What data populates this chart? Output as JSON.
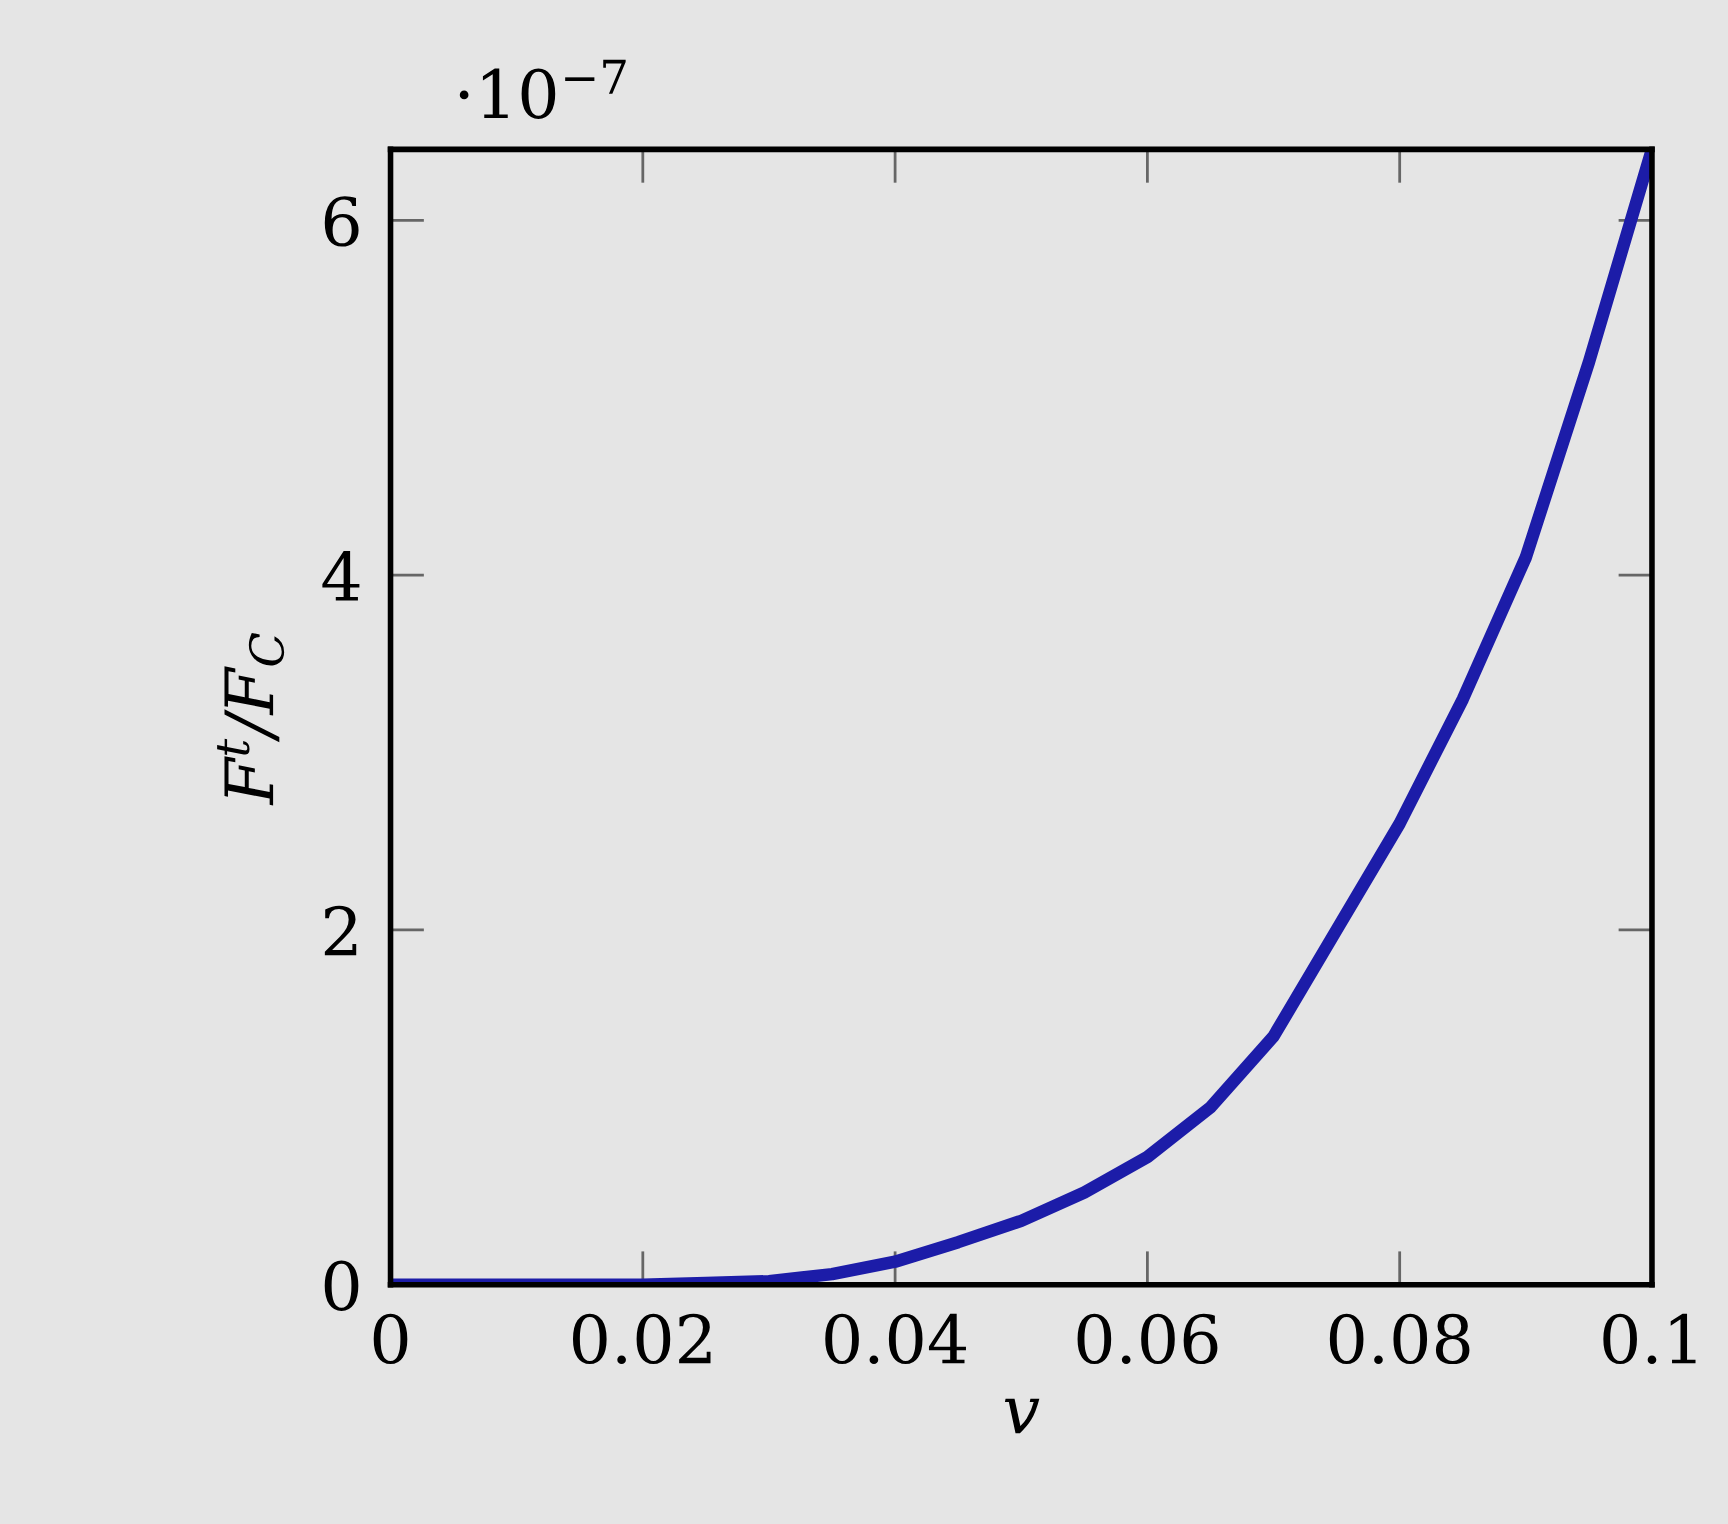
{
  "chart_data": {
    "type": "line",
    "xlabel": "v",
    "ylabel": "F$^{t}$/F$_{C}$",
    "annotations": [
      "·10$^{−7}$"
    ],
    "x": [
      0,
      0.01,
      0.02,
      0.025,
      0.03,
      0.035,
      0.04,
      0.045,
      0.05,
      0.055,
      0.06,
      0.065,
      0.07,
      0.075,
      0.08,
      0.085,
      0.09,
      0.095,
      0.1
    ],
    "series": [
      {
        "color": "#1c1ca8",
        "values": [
          0,
          0,
          0,
          0.01,
          0.02,
          0.06,
          0.13,
          0.24,
          0.36,
          0.52,
          0.72,
          1.0,
          1.4,
          2.0,
          2.6,
          3.3,
          4.1,
          5.2,
          6.4
        ]
      }
    ],
    "xlim": [
      0,
      0.1
    ],
    "ylim": [
      0,
      6.4
    ],
    "xticks": [
      0,
      0.02,
      0.04,
      0.06,
      0.08,
      0.1
    ],
    "yticks": [
      0,
      2,
      4,
      6
    ],
    "grid": false,
    "legend": false,
    "marker": "none",
    "line_style": "solid"
  }
}
